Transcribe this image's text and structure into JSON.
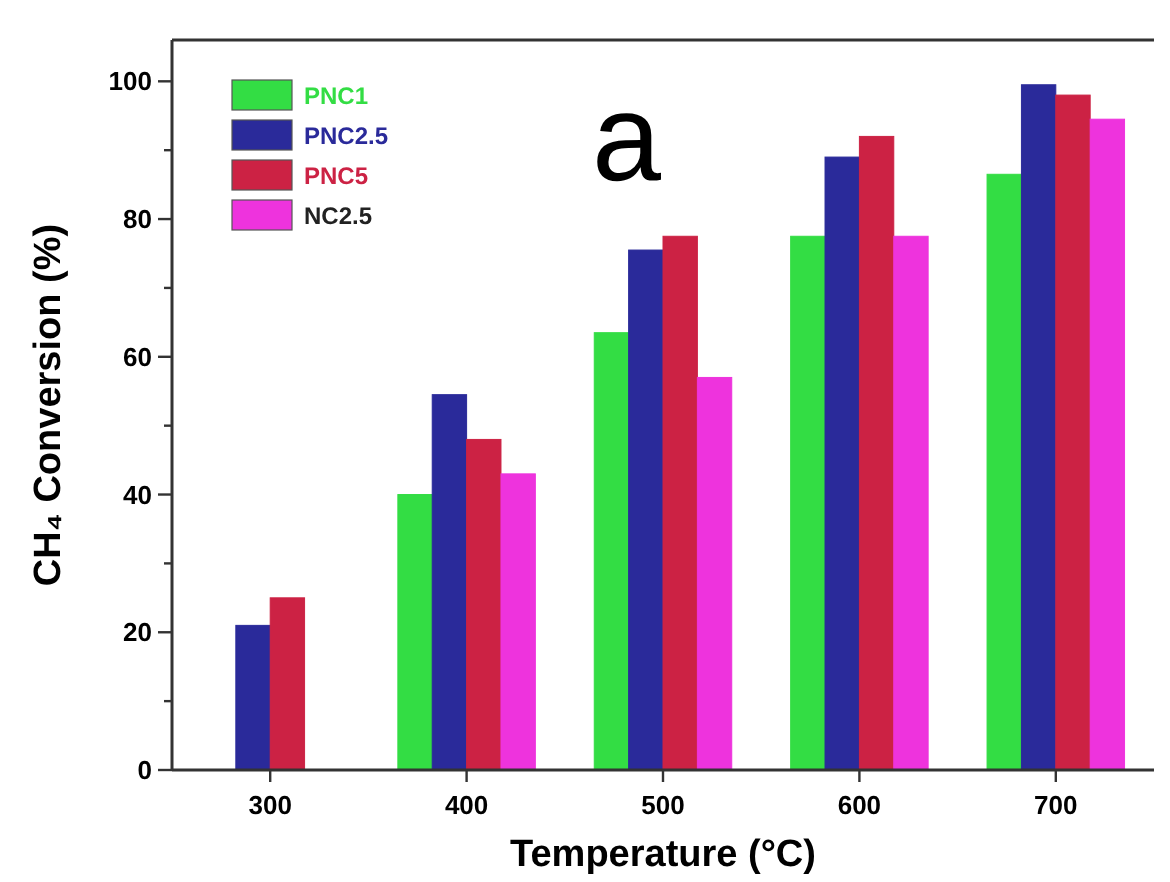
{
  "chart_data": {
    "type": "bar",
    "xlabel": "Temperature (°C)",
    "ylabel": "CH₄ Conversion (%)",
    "categories": [
      "300",
      "400",
      "500",
      "600",
      "700"
    ],
    "series": [
      {
        "name": "PNC1",
        "color": "#33dd44",
        "values": [
          null,
          40,
          63.5,
          77.5,
          86.5
        ]
      },
      {
        "name": "PNC2.5",
        "color": "#2a2a9a",
        "values": [
          21,
          54.5,
          75.5,
          89,
          99.5
        ]
      },
      {
        "name": "PNC5",
        "color": "#cc2244",
        "values": [
          25,
          48,
          77.5,
          92,
          98
        ]
      },
      {
        "name": "NC2.5",
        "color": "#ee33dd",
        "values": [
          null,
          43,
          57,
          77.5,
          94.5
        ]
      }
    ],
    "ylim": [
      0,
      106
    ],
    "yticks": [
      0,
      {
        "value": 10,
        "label": null
      },
      20,
      {
        "value": 30,
        "label": null
      },
      40,
      {
        "value": 50,
        "label": null
      },
      60,
      {
        "value": 70,
        "label": null
      },
      80,
      {
        "value": 90,
        "label": null
      },
      100
    ],
    "annotations": [
      "a"
    ],
    "legend": "top left",
    "grid": false
  }
}
